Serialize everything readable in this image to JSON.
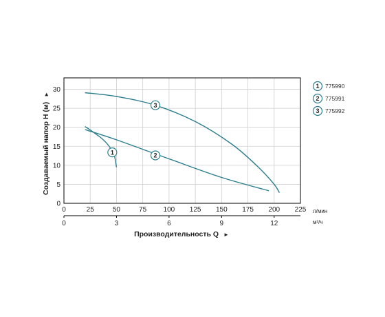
{
  "chart_data": {
    "type": "line",
    "ylabel": "Создаваемый напор H (м)",
    "ylabel_arrow": "►",
    "xlabel": "Производительность Q",
    "xlabel_arrow": "►",
    "x_unit_primary": "л/мин",
    "x_unit_secondary": "м³/ч",
    "xlim": [
      0,
      225
    ],
    "ylim": [
      0,
      33
    ],
    "x_ticks": [
      0,
      25,
      50,
      75,
      100,
      125,
      150,
      175,
      200,
      225
    ],
    "y_ticks": [
      0,
      5,
      10,
      15,
      20,
      25,
      30
    ],
    "x2_ticks": [
      {
        "label": "0",
        "at_lpm": 0
      },
      {
        "label": "3",
        "at_lpm": 50
      },
      {
        "label": "6",
        "at_lpm": 100
      },
      {
        "label": "9",
        "at_lpm": 150
      },
      {
        "label": "12",
        "at_lpm": 200
      }
    ],
    "grid": true,
    "legend_position": "right",
    "line_color": "#2b7d8c",
    "series": [
      {
        "name": "775990",
        "marker": "1",
        "marker_at": [
          46,
          13.4
        ],
        "x": [
          20,
          25,
          30,
          35,
          40,
          45,
          48,
          50
        ],
        "y": [
          20.2,
          19.3,
          18.3,
          17.3,
          16.0,
          14.2,
          12.5,
          9.5
        ]
      },
      {
        "name": "775991",
        "marker": "2",
        "marker_at": [
          87,
          12.6
        ],
        "x": [
          20,
          50,
          100,
          150,
          195
        ],
        "y": [
          19.4,
          16.7,
          11.7,
          6.8,
          3.3
        ]
      },
      {
        "name": "775992",
        "marker": "3",
        "marker_at": [
          87,
          25.8
        ],
        "x": [
          20,
          50,
          87,
          125,
          160,
          185,
          200,
          205
        ],
        "y": [
          29.1,
          28.1,
          25.8,
          21.5,
          15.5,
          9.5,
          5.0,
          2.8
        ]
      }
    ]
  }
}
